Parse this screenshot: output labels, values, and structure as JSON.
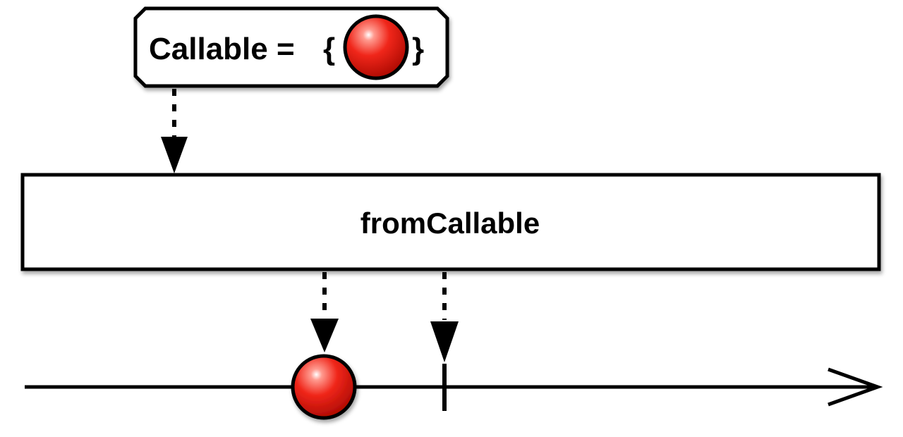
{
  "callable_box": {
    "label": "Callable =",
    "open_brace": "{",
    "close_brace": "}",
    "item_icon": "red-marble",
    "item_color": "#e8140c"
  },
  "operator_box": {
    "label": "fromCallable"
  },
  "output_timeline": {
    "emissions": [
      {
        "kind": "item",
        "icon": "red-marble",
        "color": "#e8140c"
      },
      {
        "kind": "completion",
        "icon": "completion-tick"
      }
    ]
  }
}
